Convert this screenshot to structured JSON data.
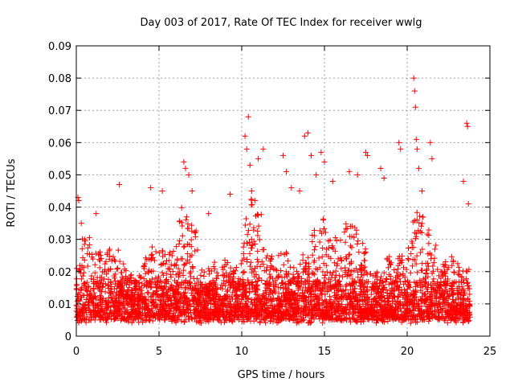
{
  "chart_data": {
    "type": "scatter",
    "title": "Day 003 of 2017, Rate Of TEC Index for receiver wwlg",
    "xlabel": "GPS time / hours",
    "ylabel": "ROTI / TECUs",
    "xlim": [
      0,
      25
    ],
    "ylim": [
      0,
      0.09
    ],
    "xticks": [
      0,
      5,
      10,
      15,
      20,
      25
    ],
    "xtick_labels": [
      "0",
      "5",
      "10",
      "15",
      "20",
      "25"
    ],
    "yticks": [
      0,
      0.01,
      0.02,
      0.03,
      0.04,
      0.05,
      0.06,
      0.07,
      0.08,
      0.09
    ],
    "ytick_labels": [
      "0",
      "0.01",
      "0.02",
      "0.03",
      "0.04",
      "0.05",
      "0.06",
      "0.07",
      "0.08",
      "0.09"
    ],
    "grid": true,
    "marker": "+",
    "color": "#ff0000",
    "x_range_of_data": [
      0,
      23.8
    ],
    "series": [
      {
        "name": "ROTI",
        "points": [
          [
            0.1,
            0.043
          ],
          [
            0.15,
            0.042
          ],
          [
            0.3,
            0.035
          ],
          [
            0.5,
            0.03
          ],
          [
            1.2,
            0.038
          ],
          [
            2.6,
            0.047
          ],
          [
            4.5,
            0.046
          ],
          [
            5.2,
            0.045
          ],
          [
            6.5,
            0.054
          ],
          [
            6.6,
            0.052
          ],
          [
            6.8,
            0.05
          ],
          [
            7.0,
            0.045
          ],
          [
            8.0,
            0.038
          ],
          [
            9.3,
            0.044
          ],
          [
            10.2,
            0.062
          ],
          [
            10.3,
            0.058
          ],
          [
            10.4,
            0.068
          ],
          [
            10.5,
            0.053
          ],
          [
            10.6,
            0.045
          ],
          [
            11.0,
            0.055
          ],
          [
            11.3,
            0.058
          ],
          [
            12.5,
            0.056
          ],
          [
            12.7,
            0.051
          ],
          [
            13.0,
            0.046
          ],
          [
            13.5,
            0.045
          ],
          [
            13.8,
            0.062
          ],
          [
            14.0,
            0.063
          ],
          [
            14.2,
            0.056
          ],
          [
            14.5,
            0.05
          ],
          [
            14.8,
            0.057
          ],
          [
            15.0,
            0.054
          ],
          [
            15.5,
            0.048
          ],
          [
            16.5,
            0.051
          ],
          [
            17.0,
            0.05
          ],
          [
            17.5,
            0.057
          ],
          [
            17.6,
            0.056
          ],
          [
            18.4,
            0.052
          ],
          [
            18.6,
            0.049
          ],
          [
            19.5,
            0.06
          ],
          [
            19.6,
            0.058
          ],
          [
            20.4,
            0.08
          ],
          [
            20.45,
            0.076
          ],
          [
            20.5,
            0.071
          ],
          [
            20.55,
            0.061
          ],
          [
            20.6,
            0.058
          ],
          [
            20.7,
            0.052
          ],
          [
            20.9,
            0.045
          ],
          [
            21.4,
            0.06
          ],
          [
            21.5,
            0.055
          ],
          [
            23.4,
            0.048
          ],
          [
            23.6,
            0.066
          ],
          [
            23.65,
            0.065
          ],
          [
            23.7,
            0.041
          ]
        ]
      }
    ]
  }
}
